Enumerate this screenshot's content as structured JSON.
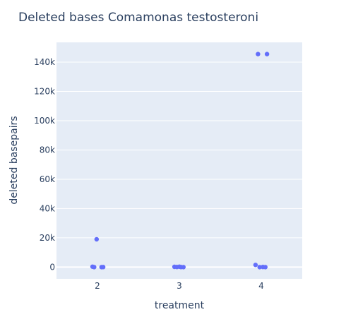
{
  "chart_data": {
    "type": "scatter",
    "title": "Deleted bases Comamonas testosteroni",
    "xlabel": "treatment",
    "ylabel": "deleted basepairs",
    "xlim": [
      1.5,
      4.5
    ],
    "ylim": [
      -8000,
      153500
    ],
    "x_ticks": [
      2,
      3,
      4
    ],
    "x_tick_labels": [
      "2",
      "3",
      "4"
    ],
    "y_ticks": [
      0,
      20000,
      40000,
      60000,
      80000,
      100000,
      120000,
      140000
    ],
    "y_tick_labels": [
      "0",
      "20k",
      "40k",
      "60k",
      "80k",
      "100k",
      "120k",
      "140k"
    ],
    "grid": true,
    "colors": {
      "plot_bg": "#e5ecf6",
      "grid": "#ffffff",
      "marker": "#636efa",
      "text": "#2a3f5f"
    },
    "points": [
      {
        "x": 1.94,
        "y": 300
      },
      {
        "x": 1.96,
        "y": 0
      },
      {
        "x": 1.99,
        "y": 19000
      },
      {
        "x": 2.05,
        "y": 0
      },
      {
        "x": 2.07,
        "y": 50
      },
      {
        "x": 2.94,
        "y": 200
      },
      {
        "x": 2.97,
        "y": 100
      },
      {
        "x": 3.0,
        "y": 300
      },
      {
        "x": 3.02,
        "y": 50
      },
      {
        "x": 3.05,
        "y": 0
      },
      {
        "x": 3.93,
        "y": 1500
      },
      {
        "x": 3.96,
        "y": 145500
      },
      {
        "x": 3.98,
        "y": 0
      },
      {
        "x": 4.02,
        "y": 100
      },
      {
        "x": 4.05,
        "y": 0
      },
      {
        "x": 4.07,
        "y": 145500
      }
    ]
  }
}
